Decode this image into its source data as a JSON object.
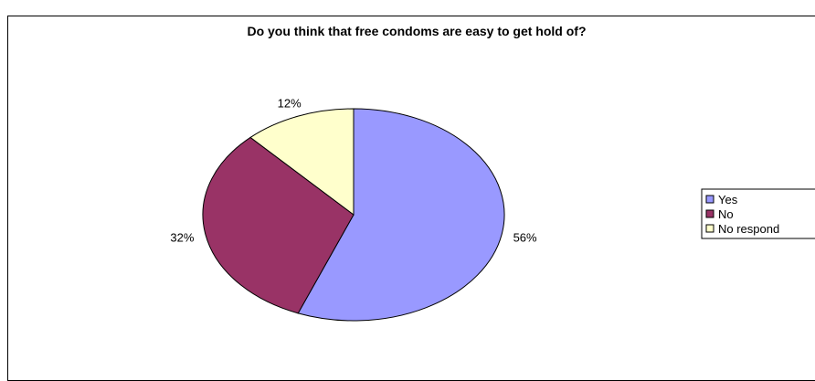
{
  "chart_data": {
    "type": "pie",
    "title": "Do you think that free condoms are easy to get hold of?",
    "categories": [
      "Yes",
      "No",
      "No respond"
    ],
    "values": [
      56,
      32,
      12
    ],
    "labels": [
      "56%",
      "32%",
      "12%"
    ],
    "colors": [
      "#9999FF",
      "#993366",
      "#FFFFCC"
    ],
    "legend_position": "right"
  }
}
